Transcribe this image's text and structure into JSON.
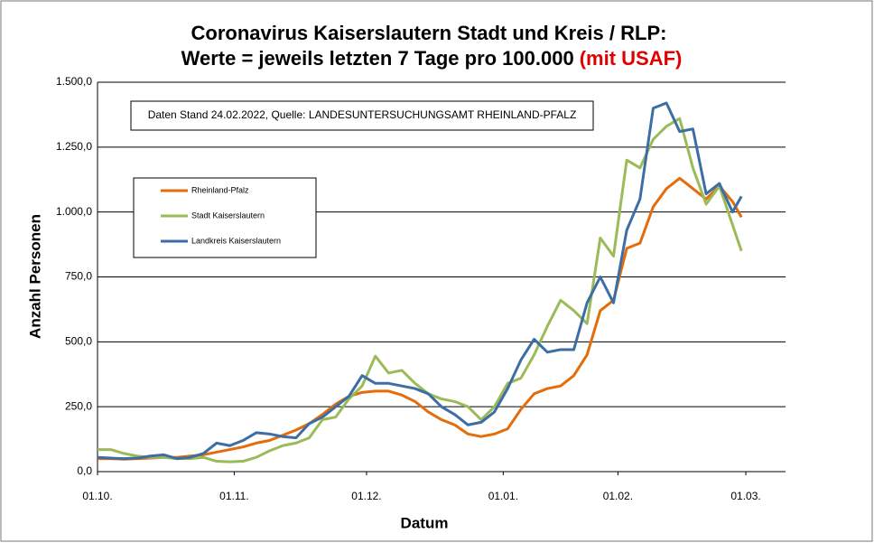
{
  "chart_data": {
    "type": "line",
    "title": [
      "Coronavirus Kaiserslautern Stadt und Kreis / RLP:",
      "Werte = jeweils letzten 7 Tage pro 100.000"
    ],
    "title_highlight": "(mit USAF)",
    "annotation": "Daten Stand 24.02.2022, Quelle: LANDESUNTERSUCHUNGSAMT RHEINLAND-PFALZ",
    "xlabel": "Datum",
    "ylabel": "Anzahl Personen",
    "x": [
      0,
      3,
      6,
      9,
      12,
      15,
      18,
      21,
      24,
      27,
      30,
      33,
      36,
      39,
      42,
      45,
      48,
      51,
      54,
      57,
      60,
      63,
      66,
      69,
      72,
      75,
      78,
      81,
      84,
      87,
      90,
      93,
      96,
      99,
      102,
      105,
      108,
      111,
      114,
      117,
      120,
      123,
      126,
      129,
      132,
      135,
      138,
      141,
      144,
      146
    ],
    "xlim": [
      0,
      156
    ],
    "xticks": [
      {
        "value": 0,
        "label": "01.10."
      },
      {
        "value": 31,
        "label": "01.11."
      },
      {
        "value": 61,
        "label": "01.12."
      },
      {
        "value": 92,
        "label": "01.01."
      },
      {
        "value": 118,
        "label": "01.02."
      },
      {
        "value": 147,
        "label": "01.03."
      }
    ],
    "ylim": [
      0,
      1500
    ],
    "yticks": [
      {
        "value": 0,
        "label": "0,0"
      },
      {
        "value": 250,
        "label": "250,0"
      },
      {
        "value": 500,
        "label": "500,0"
      },
      {
        "value": 750,
        "label": "750,0"
      },
      {
        "value": 1000,
        "label": "1.000,0"
      },
      {
        "value": 1250,
        "label": "1.250,0"
      },
      {
        "value": 1500,
        "label": "1.500,0"
      }
    ],
    "grid": true,
    "legend": "upper left",
    "series": [
      {
        "name": "Rheinland-Pfalz",
        "color": "#e46c0a",
        "values": [
          50,
          50,
          48,
          50,
          52,
          55,
          55,
          60,
          65,
          75,
          85,
          95,
          110,
          120,
          140,
          160,
          185,
          220,
          260,
          290,
          305,
          310,
          310,
          295,
          270,
          230,
          200,
          180,
          145,
          135,
          145,
          165,
          240,
          300,
          320,
          330,
          370,
          450,
          620,
          660,
          860,
          880,
          1020,
          1090,
          1130,
          1090,
          1050,
          1100,
          1040,
          980
        ]
      },
      {
        "name": "Stadt Kaiserslautern",
        "color": "#9bbb59",
        "values": [
          85,
          85,
          70,
          60,
          55,
          55,
          50,
          50,
          55,
          40,
          38,
          40,
          55,
          80,
          100,
          110,
          130,
          200,
          210,
          280,
          330,
          445,
          380,
          390,
          340,
          300,
          280,
          270,
          250,
          200,
          250,
          340,
          360,
          450,
          560,
          660,
          620,
          570,
          900,
          830,
          1200,
          1170,
          1280,
          1330,
          1360,
          1170,
          1030,
          1100,
          950,
          850
        ]
      },
      {
        "name": "Landkreis Kaiserslautern",
        "color": "#3c6ea5",
        "values": [
          55,
          52,
          50,
          52,
          60,
          65,
          50,
          55,
          70,
          110,
          100,
          120,
          150,
          145,
          135,
          130,
          185,
          210,
          250,
          290,
          370,
          340,
          340,
          330,
          320,
          300,
          250,
          220,
          180,
          190,
          230,
          320,
          430,
          510,
          460,
          470,
          470,
          650,
          750,
          650,
          930,
          1050,
          1400,
          1420,
          1310,
          1320,
          1070,
          1110,
          1000,
          1060
        ]
      }
    ]
  }
}
